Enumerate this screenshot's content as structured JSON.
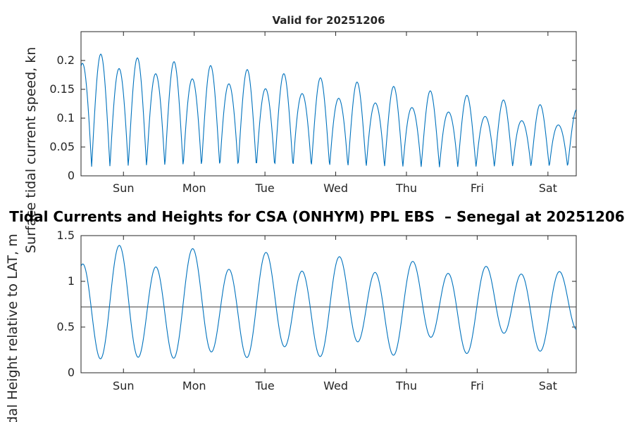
{
  "suptitle": "Tidal Currents and Heights for CSA (ONHYM) PPL EBS  – Senegal at 20251206",
  "colors": {
    "line": "#0072bd",
    "axis": "#262626",
    "text": "#262626",
    "title_text": "#000000",
    "mean_line": "#404040",
    "background": "#ffffff"
  },
  "chart_data": [
    {
      "type": "line",
      "title": "Valid for 20251206",
      "ylabel": "Surface tidal current speed, kn",
      "xlabel": "",
      "legend": "none",
      "grid": false,
      "x_tick_labels": [
        "Sun",
        "Mon",
        "Tue",
        "Wed",
        "Thu",
        "Fri",
        "Sat"
      ],
      "x_tick_hours": [
        14.4,
        38.4,
        62.4,
        86.4,
        110.4,
        134.4,
        158.4
      ],
      "x_range_hours": [
        0,
        168
      ],
      "ylim": [
        0,
        0.25
      ],
      "yticks": [
        0,
        0.05,
        0.1,
        0.15,
        0.2
      ],
      "ytick_labels": [
        "0",
        "0.05",
        "0.1",
        "0.15",
        "0.2"
      ],
      "sample_step_hours": 0.2,
      "series_model": {
        "kind": "speed",
        "base": 0.015,
        "amp_start": 0.19,
        "amp_end": 0.085,
        "period_hours": 12.42,
        "phase_hour": -2.6,
        "ineq_start": 0.05,
        "ineq_end": 0.18
      },
      "approx_peak_values_kn": [
        0.21,
        0.205,
        0.19,
        0.185,
        0.19,
        0.18,
        0.17,
        0.165,
        0.16,
        0.155,
        0.16,
        0.145,
        0.14,
        0.135,
        0.15,
        0.12,
        0.1,
        0.13,
        0.11,
        0.12,
        0.085,
        0.09,
        0.12,
        0.105,
        0.07,
        0.095,
        0.08
      ],
      "approx_trough_values_kn": [
        0.035,
        0.03,
        0.03,
        0.025,
        0.03,
        0.025,
        0.02,
        0.02,
        0.02,
        0.015,
        0.02,
        0.015,
        0.015,
        0.01,
        0.015,
        0.01,
        0.01,
        0.015,
        0.01,
        0.015,
        0.01,
        0.01,
        0.015,
        0.01,
        0.01,
        0.015
      ]
    },
    {
      "type": "line",
      "title": "",
      "ylabel": "Tidal Height relative to LAT, m",
      "xlabel": "",
      "legend": "none",
      "grid": false,
      "x_tick_labels": [
        "Sun",
        "Mon",
        "Tue",
        "Wed",
        "Thu",
        "Fri",
        "Sat"
      ],
      "x_tick_hours": [
        14.4,
        38.4,
        62.4,
        86.4,
        110.4,
        134.4,
        158.4
      ],
      "x_range_hours": [
        0,
        168
      ],
      "ylim": [
        0,
        1.5
      ],
      "yticks": [
        0,
        0.5,
        1,
        1.5
      ],
      "ytick_labels": [
        "0",
        "0.5",
        "1",
        "1.5"
      ],
      "sample_step_hours": 0.2,
      "mean_level_m": 0.72,
      "series_model": {
        "kind": "height",
        "mean": 0.72,
        "amp_start": 0.58,
        "amp_end": 0.36,
        "period_hours": 12.42,
        "phase_hour": 13,
        "diurnal_amp": 0.11,
        "diurnal_period_hours": 25.82,
        "diurnal_phase_hour": 13
      },
      "approx_high_water_m": [
        1.19,
        1.41,
        1.15,
        1.4,
        1.05,
        1.35,
        1.05,
        1.28,
        1.0,
        1.22,
        0.95,
        1.15,
        0.92,
        1.08
      ],
      "approx_low_water_m": [
        0.15,
        0.35,
        0.07,
        0.3,
        0.1,
        0.32,
        0.15,
        0.4,
        0.2,
        0.45,
        0.3,
        0.5,
        0.42
      ]
    }
  ]
}
